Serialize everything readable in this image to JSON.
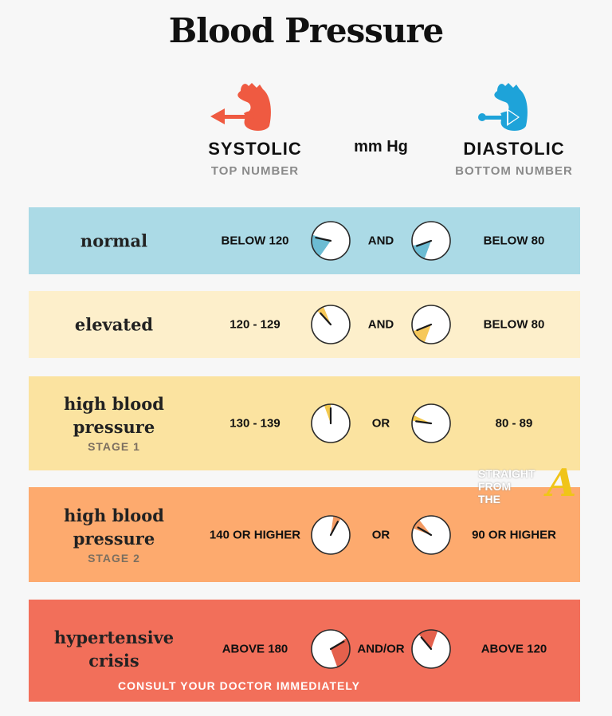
{
  "title": "Blood Pressure",
  "header": {
    "systolic": {
      "label": "SYSTOLIC",
      "sub": "TOP NUMBER",
      "icon": "heart-arrow-out-icon",
      "color": "#EF5A41"
    },
    "unit": "mm Hg",
    "diastolic": {
      "label": "DIASTOLIC",
      "sub": "BOTTOM NUMBER",
      "icon": "heart-arrow-in-icon",
      "color": "#1EA3D9"
    }
  },
  "rows": [
    {
      "label": "normal",
      "stage": "",
      "systolic": "BELOW 120",
      "connector": "AND",
      "diastolic": "BELOW 80",
      "bg": "#ABDAE6",
      "accent": "#6CBCD3"
    },
    {
      "label": "elevated",
      "stage": "",
      "systolic": "120 - 129",
      "connector": "AND",
      "diastolic": "BELOW 80",
      "bg": "#FDEFCB",
      "accent": "#F6C85A"
    },
    {
      "label": "high blood pressure",
      "stage": "STAGE 1",
      "systolic": "130 - 139",
      "connector": "OR",
      "diastolic": "80 - 89",
      "bg": "#FBE3A0",
      "accent": "#F3C94E"
    },
    {
      "label": "high blood pressure",
      "stage": "STAGE 2",
      "systolic": "140 OR HIGHER",
      "connector": "OR",
      "diastolic": "90 OR HIGHER",
      "bg": "#FDAA6E",
      "accent": "#F39A62"
    },
    {
      "label": "hypertensive crisis",
      "stage": "",
      "systolic": "ABOVE 180",
      "connector": "AND/OR",
      "diastolic": "ABOVE 120",
      "bg": "#F26F5A",
      "accent": "#E4604C",
      "note": "CONSULT YOUR DOCTOR IMMEDIATELY"
    }
  ],
  "watermark": {
    "text": "STRAIGHT FROM THE",
    "letter": "A"
  }
}
